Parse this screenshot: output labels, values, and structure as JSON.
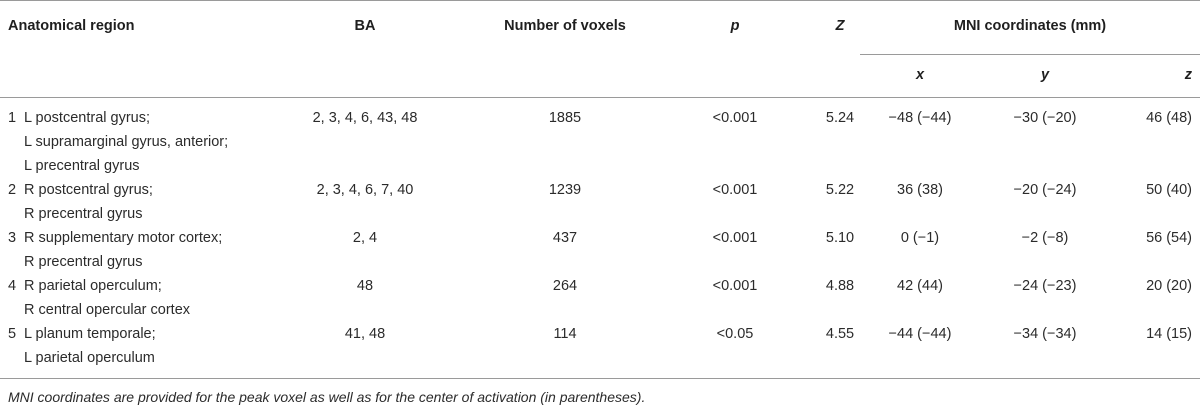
{
  "headers": {
    "region": "Anatomical region",
    "ba": "BA",
    "voxels": "Number of voxels",
    "p": "p",
    "z": "Z",
    "mni": "MNI coordinates (mm)",
    "x": "x",
    "y": "y",
    "zc": "z"
  },
  "rows": [
    {
      "num": "1",
      "region": [
        "L postcentral gyrus;",
        "L supramarginal gyrus, anterior;",
        "L precentral gyrus"
      ],
      "ba": "2, 3, 4, 6, 43, 48",
      "voxels": "1885",
      "p": "<0.001",
      "z": "5.24",
      "x": "−48 (−44)",
      "y": "−30 (−20)",
      "zc": "46 (48)"
    },
    {
      "num": "2",
      "region": [
        "R postcentral gyrus;",
        "R precentral gyrus"
      ],
      "ba": "2, 3, 4, 6, 7, 40",
      "voxels": "1239",
      "p": "<0.001",
      "z": "5.22",
      "x": "36 (38)",
      "y": "−20 (−24)",
      "zc": "50 (40)"
    },
    {
      "num": "3",
      "region": [
        "R supplementary motor cortex;",
        "R precentral gyrus"
      ],
      "ba": "2, 4",
      "voxels": "437",
      "p": "<0.001",
      "z": "5.10",
      "x": "0 (−1)",
      "y": "−2 (−8)",
      "zc": "56 (54)"
    },
    {
      "num": "4",
      "region": [
        "R parietal operculum;",
        "R central opercular cortex"
      ],
      "ba": "48",
      "voxels": "264",
      "p": "<0.001",
      "z": "4.88",
      "x": "42 (44)",
      "y": "−24 (−23)",
      "zc": "20 (20)"
    },
    {
      "num": "5",
      "region": [
        "L planum temporale;",
        "L parietal operculum"
      ],
      "ba": "41, 48",
      "voxels": "114",
      "p": "<0.05",
      "z": "4.55",
      "x": "−44 (−44)",
      "y": "−34 (−34)",
      "zc": "14 (15)"
    }
  ],
  "footnote": "MNI coordinates are provided for the peak voxel as well as for the center of activation (in parentheses)."
}
